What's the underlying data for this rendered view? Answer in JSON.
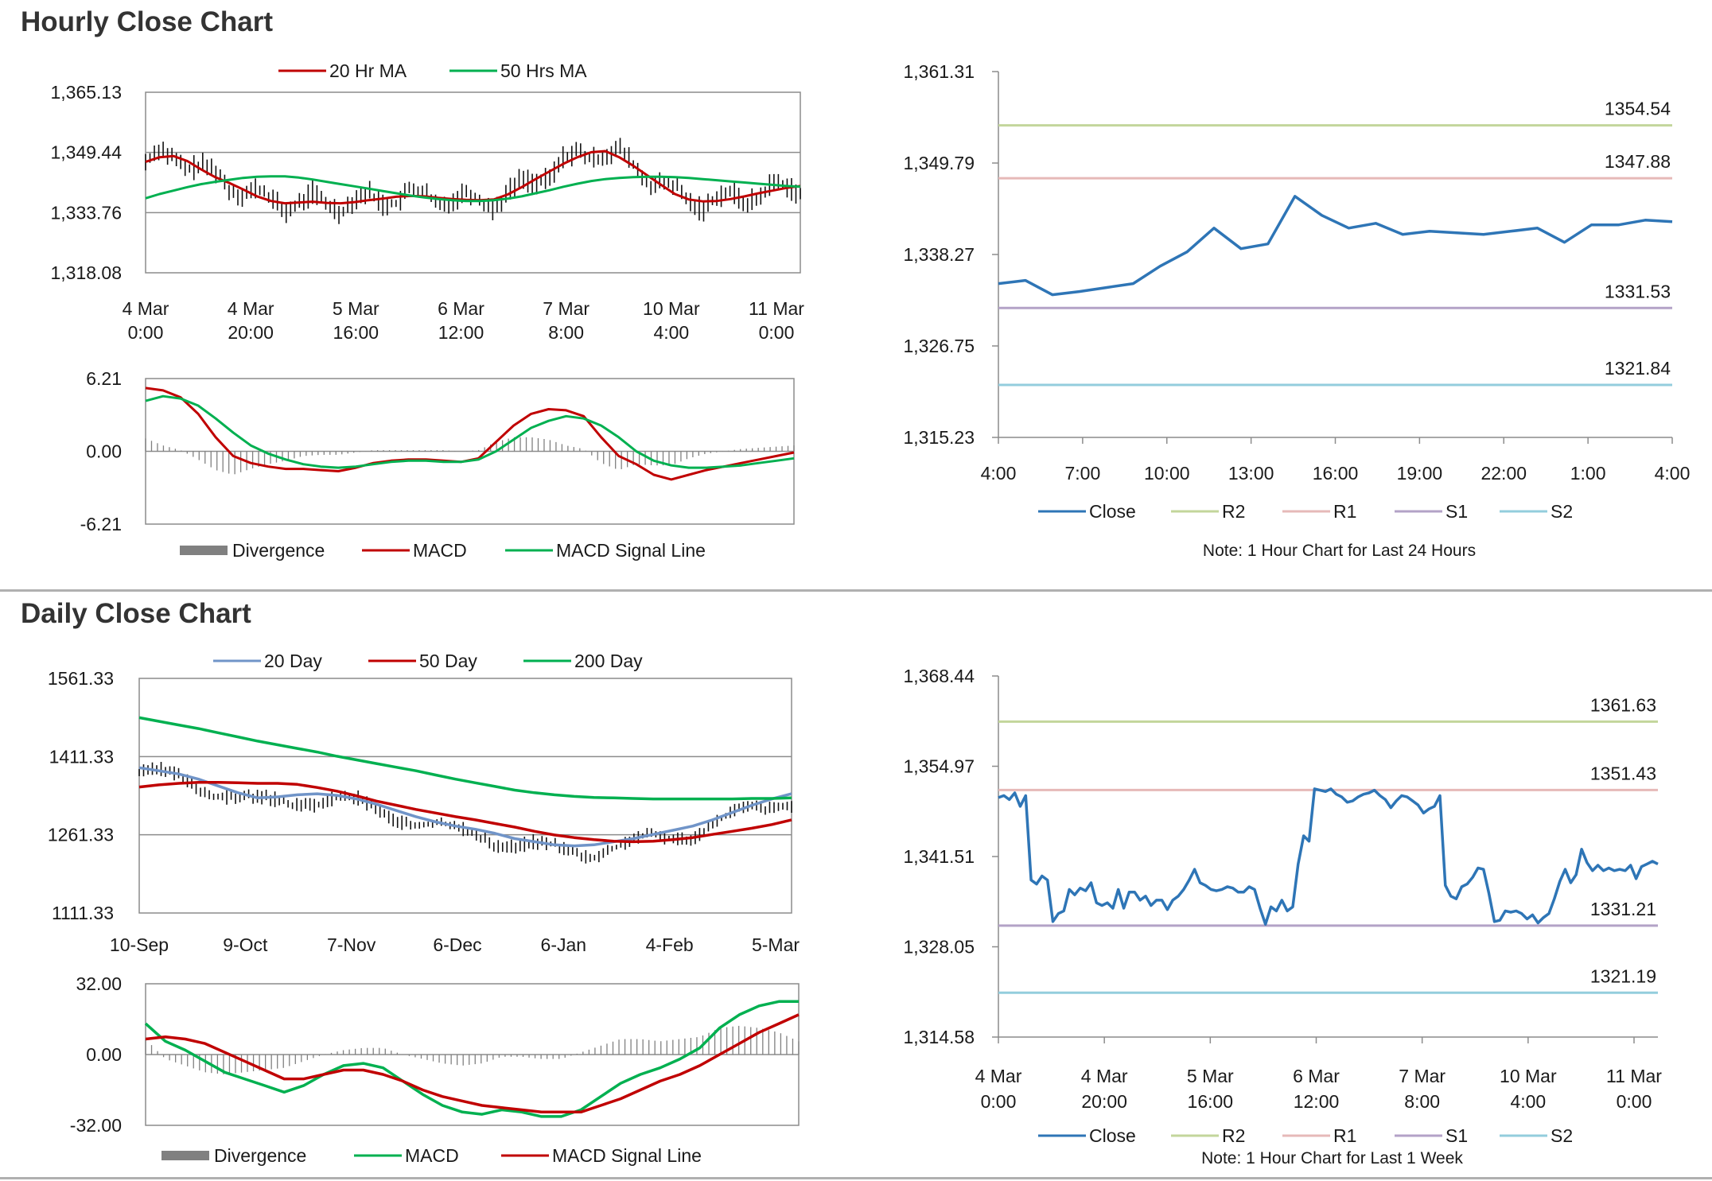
{
  "sections": {
    "hourly_title": "Hourly Close Chart",
    "daily_title": "Daily Close Chart"
  },
  "chart_data": [
    {
      "id": "hourly-price",
      "type": "line",
      "xlabels": [
        [
          "4 Mar",
          "0:00"
        ],
        [
          "4 Mar",
          "20:00"
        ],
        [
          "5 Mar",
          "16:00"
        ],
        [
          "6 Mar",
          "12:00"
        ],
        [
          "7 Mar",
          "8:00"
        ],
        [
          "10 Mar",
          "4:00"
        ],
        [
          "11 Mar",
          "0:00"
        ]
      ],
      "yticks": [
        "1,318.08",
        "1,333.76",
        "1,349.44",
        "1,365.13"
      ],
      "ylim": [
        1318.08,
        1365.13
      ],
      "legend": [
        "20 Hr MA",
        "50 Hrs MA"
      ],
      "series": [
        {
          "name": "20 Hr MA",
          "color": "#c00000",
          "values": [
            1347,
            1348.2,
            1348.5,
            1347.2,
            1345,
            1343,
            1341.5,
            1339.8,
            1338,
            1336.8,
            1336.2,
            1336.4,
            1336.6,
            1336.3,
            1336.2,
            1336.5,
            1337,
            1337.4,
            1337.9,
            1338.1,
            1338,
            1337.6,
            1337.3,
            1337.1,
            1337,
            1337.2,
            1338.5,
            1340.4,
            1342.5,
            1344.5,
            1346.5,
            1348.2,
            1349.5,
            1349.8,
            1348.2,
            1346,
            1343.5,
            1341,
            1338.6,
            1337.2,
            1336.7,
            1336.8,
            1337.3,
            1338,
            1338.8,
            1339.5,
            1340.2,
            1340.7
          ]
        },
        {
          "name": "50 Hrs MA",
          "color": "#00b050",
          "values": [
            1337.5,
            1338.6,
            1339.5,
            1340.4,
            1341.2,
            1341.8,
            1342.3,
            1342.8,
            1343.1,
            1343.2,
            1343.2,
            1342.9,
            1342.4,
            1341.8,
            1341.2,
            1340.6,
            1340,
            1339.4,
            1338.8,
            1338.2,
            1337.7,
            1337.3,
            1337,
            1336.8,
            1336.8,
            1337,
            1337.4,
            1338,
            1338.8,
            1339.6,
            1340.5,
            1341.3,
            1342,
            1342.5,
            1342.8,
            1343,
            1343.1,
            1343.1,
            1343,
            1342.8,
            1342.5,
            1342.2,
            1341.9,
            1341.6,
            1341.3,
            1341,
            1340.7,
            1340.5
          ]
        }
      ],
      "bars_note": "hourly high-low bars around close"
    },
    {
      "id": "hourly-macd",
      "type": "line",
      "yticks": [
        "-6.21",
        "0.00",
        "6.21"
      ],
      "ylim": [
        -6.21,
        6.21
      ],
      "legend": [
        "Divergence",
        "MACD",
        "MACD Signal Line"
      ],
      "series": [
        {
          "name": "MACD",
          "color": "#c00000",
          "values": [
            5.4,
            5.2,
            4.6,
            3.2,
            1.2,
            -0.4,
            -1,
            -1.3,
            -1.5,
            -1.5,
            -1.6,
            -1.7,
            -1.4,
            -1,
            -0.8,
            -0.7,
            -0.7,
            -0.8,
            -0.9,
            -0.6,
            0.8,
            2.2,
            3.2,
            3.6,
            3.5,
            3,
            1.2,
            -0.4,
            -1.1,
            -2,
            -2.4,
            -2,
            -1.6,
            -1.3,
            -1,
            -0.7,
            -0.4,
            -0.1
          ]
        },
        {
          "name": "MACD Signal Line",
          "color": "#00b050",
          "values": [
            4.3,
            4.7,
            4.5,
            3.9,
            2.8,
            1.6,
            0.5,
            -0.2,
            -0.7,
            -1.1,
            -1.3,
            -1.4,
            -1.3,
            -1.1,
            -0.9,
            -0.8,
            -0.8,
            -0.9,
            -0.9,
            -0.7,
            0,
            1,
            2,
            2.6,
            3,
            2.8,
            2.2,
            1.2,
            0,
            -0.8,
            -1.2,
            -1.4,
            -1.4,
            -1.3,
            -1.2,
            -1,
            -0.8,
            -0.6
          ]
        }
      ]
    },
    {
      "id": "hourly-close-24h",
      "type": "line",
      "xticks": [
        "4:00",
        "7:00",
        "10:00",
        "13:00",
        "16:00",
        "19:00",
        "22:00",
        "1:00",
        "4:00"
      ],
      "yticks": [
        "1,315.23",
        "1,326.75",
        "1,338.27",
        "1,349.79",
        "1,361.31"
      ],
      "ylim": [
        1315.23,
        1361.31
      ],
      "levels": [
        {
          "name": "R2",
          "value": 1354.54,
          "label": "1354.54",
          "color": "#c3d69b"
        },
        {
          "name": "R1",
          "value": 1347.88,
          "label": "1347.88",
          "color": "#e6b9b8"
        },
        {
          "name": "S1",
          "value": 1331.53,
          "label": "1331.53",
          "color": "#b3a2c7"
        },
        {
          "name": "S2",
          "value": 1321.84,
          "label": "1321.84",
          "color": "#93cddd"
        }
      ],
      "series": [
        {
          "name": "Close",
          "color": "#2e75b6",
          "values": [
            1334.6,
            1335,
            1333.2,
            1333.6,
            1334.1,
            1334.6,
            1336.8,
            1338.6,
            1341.6,
            1339,
            1339.6,
            1345.6,
            1343.2,
            1341.6,
            1342.2,
            1340.8,
            1341.2,
            1341,
            1340.8,
            1341.2,
            1341.6,
            1339.8,
            1342,
            1342,
            1342.6,
            1342.4
          ]
        }
      ],
      "legend": [
        "Close",
        "R2",
        "R1",
        "S1",
        "S2"
      ],
      "note": "Note: 1 Hour Chart for Last 24 Hours"
    },
    {
      "id": "daily-price",
      "type": "line",
      "xticks": [
        "10-Sep",
        "9-Oct",
        "7-Nov",
        "6-Dec",
        "6-Jan",
        "4-Feb",
        "5-Mar"
      ],
      "yticks": [
        "1111.33",
        "1261.33",
        "1411.33",
        "1561.33"
      ],
      "ylim": [
        1111.33,
        1561.33
      ],
      "legend": [
        "20 Day",
        "50 Day",
        "200 Day"
      ],
      "series": [
        {
          "name": "20 Day",
          "color": "#7094c8",
          "values": [
            1390,
            1384,
            1378,
            1368,
            1355,
            1342,
            1332,
            1334,
            1338,
            1340,
            1337,
            1330,
            1320,
            1308,
            1296,
            1286,
            1278,
            1272,
            1264,
            1254,
            1248,
            1242,
            1240,
            1242,
            1248,
            1254,
            1262,
            1270,
            1278,
            1290,
            1304,
            1318,
            1330,
            1340
          ]
        },
        {
          "name": "50 Day",
          "color": "#c00000",
          "values": [
            1353,
            1357,
            1360,
            1362,
            1362,
            1361,
            1360,
            1360,
            1358,
            1352,
            1345,
            1336,
            1326,
            1318,
            1310,
            1303,
            1296,
            1290,
            1283,
            1276,
            1268,
            1261,
            1256,
            1252,
            1249,
            1248,
            1249,
            1252,
            1256,
            1262,
            1268,
            1274,
            1281,
            1290
          ]
        },
        {
          "name": "200 Day",
          "color": "#00b050",
          "values": [
            1486,
            1479,
            1472,
            1465,
            1457,
            1449,
            1441,
            1434,
            1427,
            1420,
            1412,
            1405,
            1398,
            1391,
            1384,
            1376,
            1368,
            1361,
            1354,
            1347,
            1342,
            1338,
            1335,
            1333,
            1332,
            1331,
            1330,
            1330,
            1330,
            1330,
            1330,
            1331,
            1331,
            1332
          ]
        }
      ],
      "bars_note": "daily high-low bars around close"
    },
    {
      "id": "daily-macd",
      "type": "line",
      "yticks": [
        "-32.00",
        "0.00",
        "32.00"
      ],
      "ylim": [
        -32,
        32
      ],
      "legend": [
        "Divergence",
        "MACD",
        "MACD Signal Line"
      ],
      "series": [
        {
          "name": "MACD",
          "color": "#00b050",
          "values": [
            14,
            6,
            2,
            -3,
            -8,
            -11,
            -14,
            -17,
            -14,
            -9,
            -5,
            -4,
            -6,
            -12,
            -18,
            -23,
            -26,
            -27,
            -25,
            -26,
            -28,
            -28,
            -25,
            -19,
            -13,
            -9,
            -6,
            -2,
            3,
            12,
            18,
            22,
            24,
            24
          ]
        },
        {
          "name": "MACD Signal Line",
          "color": "#c00000",
          "values": [
            7,
            8,
            7,
            5,
            1,
            -3,
            -7,
            -11,
            -11,
            -9,
            -7,
            -7,
            -9,
            -12,
            -16,
            -19,
            -21,
            -23,
            -24,
            -25,
            -26,
            -26,
            -26,
            -23,
            -20,
            -16,
            -12,
            -9,
            -5,
            0,
            5,
            10,
            14,
            18
          ]
        }
      ]
    },
    {
      "id": "daily-close-week",
      "type": "line",
      "xlabels": [
        [
          "4 Mar",
          "0:00"
        ],
        [
          "4 Mar",
          "20:00"
        ],
        [
          "5 Mar",
          "16:00"
        ],
        [
          "6 Mar",
          "12:00"
        ],
        [
          "7 Mar",
          "8:00"
        ],
        [
          "10 Mar",
          "4:00"
        ],
        [
          "11 Mar",
          "0:00"
        ]
      ],
      "yticks": [
        "1,314.58",
        "1,328.05",
        "1,341.51",
        "1,354.97",
        "1,368.44"
      ],
      "ylim": [
        1314.58,
        1368.44
      ],
      "levels": [
        {
          "name": "R2",
          "value": 1361.63,
          "label": "1361.63",
          "color": "#c3d69b"
        },
        {
          "name": "R1",
          "value": 1351.43,
          "label": "1351.43",
          "color": "#e6b9b8"
        },
        {
          "name": "S1",
          "value": 1331.21,
          "label": "1331.21",
          "color": "#b3a2c7"
        },
        {
          "name": "S2",
          "value": 1321.19,
          "label": "1321.19",
          "color": "#93cddd"
        }
      ],
      "series": [
        {
          "name": "Close",
          "color": "#2e75b6",
          "values": [
            1350.3,
            1350.6,
            1350,
            1351,
            1349,
            1350.6,
            1338,
            1337.4,
            1338.6,
            1338,
            1331.8,
            1333,
            1333.4,
            1336.6,
            1335.8,
            1336.8,
            1336.4,
            1337.6,
            1334.6,
            1334.2,
            1334.6,
            1333.8,
            1336.6,
            1333.8,
            1336.2,
            1336.2,
            1335,
            1335.6,
            1334.2,
            1335,
            1335,
            1333.6,
            1335,
            1335.6,
            1336.6,
            1338,
            1339.6,
            1337.6,
            1337.2,
            1336.6,
            1336.4,
            1336.6,
            1337,
            1336.8,
            1336.2,
            1336.2,
            1337,
            1336.6,
            1333.8,
            1331.4,
            1334,
            1333.4,
            1335,
            1333.4,
            1334,
            1340.4,
            1344.6,
            1343.8,
            1351.6,
            1351.4,
            1351.2,
            1351.6,
            1350.8,
            1350.4,
            1349.6,
            1349.8,
            1350.4,
            1350.8,
            1351,
            1351.4,
            1350.6,
            1350,
            1348.8,
            1349.8,
            1350.6,
            1350.4,
            1349.8,
            1349.2,
            1348,
            1348.6,
            1349,
            1350.6,
            1337.2,
            1335.6,
            1335.2,
            1337,
            1337.4,
            1338.4,
            1339.8,
            1339.6,
            1336,
            1331.8,
            1332,
            1333.4,
            1333.2,
            1333.4,
            1333,
            1332.2,
            1332.8,
            1331.6,
            1332.4,
            1333,
            1335.2,
            1337.8,
            1339.6,
            1337.6,
            1338.8,
            1342.6,
            1340.6,
            1339.4,
            1340.2,
            1339.4,
            1339.8,
            1339.4,
            1339.6,
            1339.4,
            1340.2,
            1338.2,
            1340,
            1340.4,
            1340.8,
            1340.4
          ]
        }
      ],
      "legend": [
        "Close",
        "R2",
        "R1",
        "S1",
        "S2"
      ],
      "note": "Note: 1 Hour Chart for Last 1 Week"
    }
  ]
}
